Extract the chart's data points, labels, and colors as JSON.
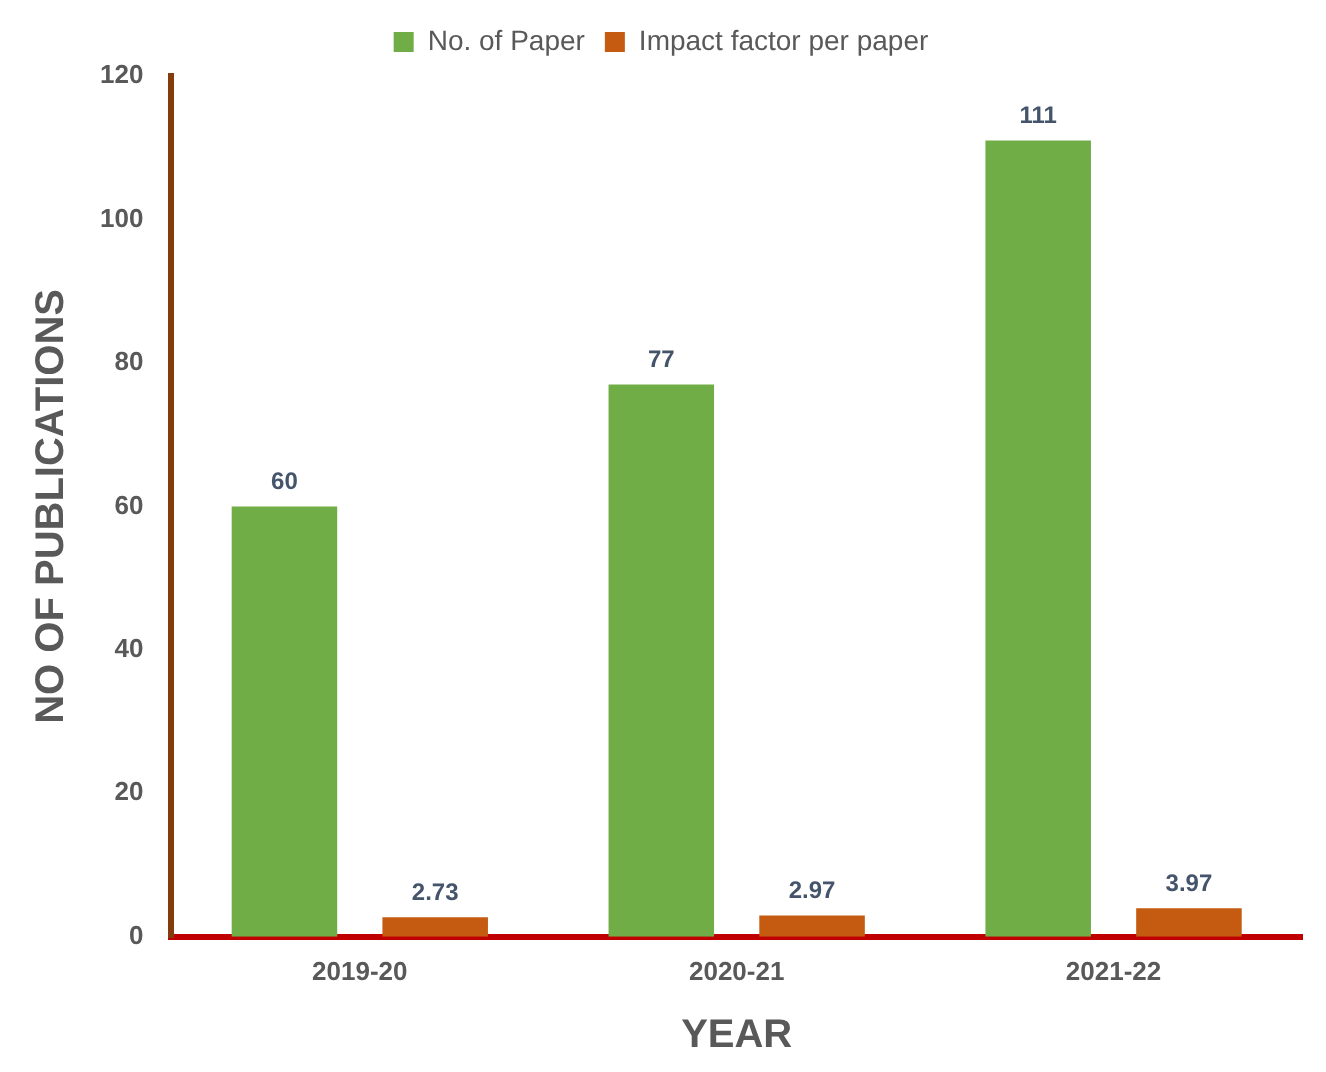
{
  "chart_data": {
    "type": "bar",
    "xlabel": "YEAR",
    "ylabel": "NO OF PUBLICATIONS",
    "categories": [
      "2019-20",
      "2020-21",
      "2021-22"
    ],
    "series": [
      {
        "name": "No. of Paper",
        "color": "#70ad47",
        "values": [
          60,
          77,
          111
        ]
      },
      {
        "name": "Impact factor per paper",
        "color": "#c55a11",
        "values": [
          2.73,
          2.97,
          3.97
        ]
      }
    ],
    "ylim": [
      0,
      120
    ],
    "yticks": [
      0,
      20,
      40,
      60,
      80,
      100,
      120
    ],
    "grid": false,
    "legend": "top",
    "data_labels": true
  }
}
